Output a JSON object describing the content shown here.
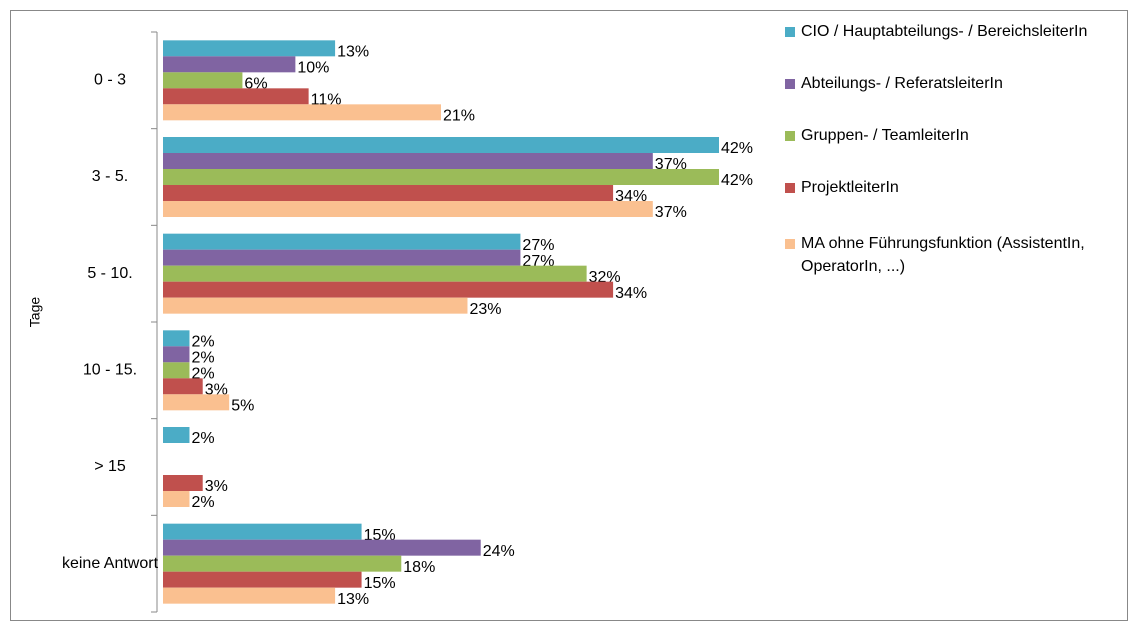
{
  "chart_data": {
    "type": "hbar",
    "y_label": "Tage",
    "categories": [
      "0 - 3",
      "3 - 5.",
      "5 - 10.",
      "10 - 15.",
      "> 15",
      "keine Antwort"
    ],
    "xlim": [
      0,
      42
    ],
    "series": [
      {
        "name": "CIO / Hauptabteilungs- / BereichsleiterIn",
        "color": "#4bacc6",
        "values": [
          13,
          42,
          27,
          2,
          2,
          15
        ],
        "value_labels": [
          "13%",
          "42%",
          "27%",
          "2%",
          "2%",
          "15%"
        ]
      },
      {
        "name": "Abteilungs- / ReferatsleiterIn",
        "color": "#8064a2",
        "values": [
          10,
          37,
          27,
          2,
          null,
          24
        ],
        "value_labels": [
          "10%",
          "37%",
          "27%",
          "2%",
          null,
          "24%"
        ]
      },
      {
        "name": "Gruppen- / TeamleiterIn",
        "color": "#9bbb59",
        "values": [
          6,
          42,
          32,
          2,
          null,
          18
        ],
        "value_labels": [
          "6%",
          "42%",
          "32%",
          "2%",
          null,
          "18%"
        ]
      },
      {
        "name": "ProjektleiterIn",
        "color": "#c0504d",
        "values": [
          11,
          34,
          34,
          3,
          3,
          15
        ],
        "value_labels": [
          "11%",
          "34%",
          "34%",
          "3%",
          "3%",
          "15%"
        ]
      },
      {
        "name": "MA ohne Führungsfunktion (AssistentIn, OperatorIn, ...)",
        "color": "#fac090",
        "values": [
          21,
          37,
          23,
          5,
          2,
          13
        ],
        "value_labels": [
          "21%",
          "37%",
          "23%",
          "5%",
          "2%",
          "13%"
        ]
      }
    ],
    "legend": "right"
  }
}
